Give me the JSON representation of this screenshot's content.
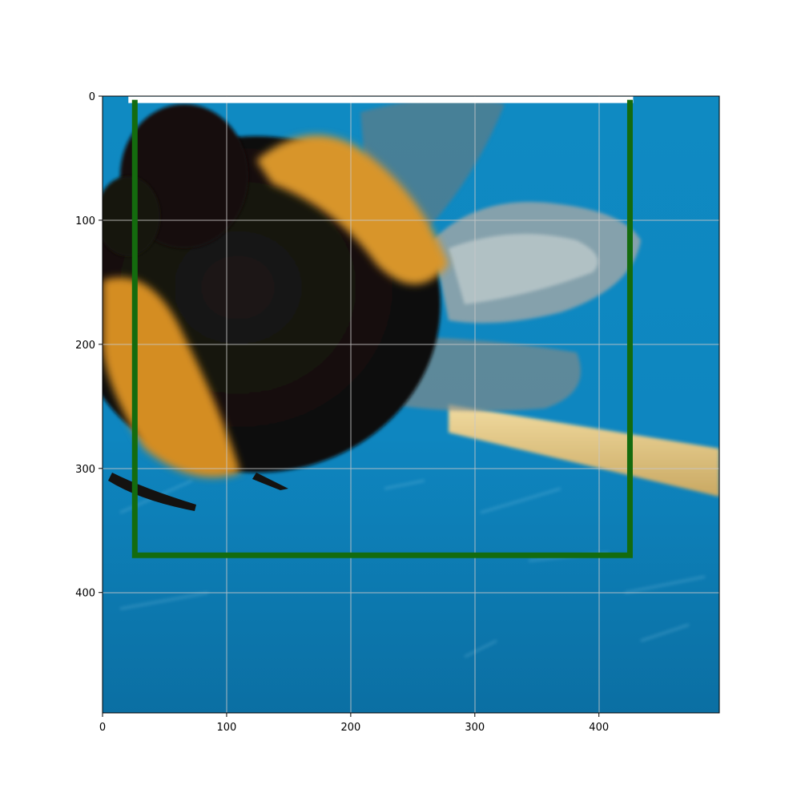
{
  "chart_data": {
    "type": "image",
    "xlim": [
      0,
      497
    ],
    "ylim": [
      497,
      0
    ],
    "grid": true,
    "x_ticks": [
      0,
      100,
      200,
      300,
      400
    ],
    "y_ticks": [
      0,
      100,
      200,
      300,
      400
    ],
    "x_tick_labels": [
      "0",
      "100",
      "200",
      "300",
      "400"
    ],
    "y_tick_labels": [
      "0",
      "100",
      "200",
      "300",
      "400"
    ],
    "bounding_box": {
      "x_min": 26,
      "x_max": 425,
      "y_min": 3,
      "y_max": 370,
      "color": "#146b0e"
    },
    "colors": {
      "water_blue": "#0f8ac2",
      "deep_blue": "#0b6fa3",
      "bee_black": "#16120e",
      "bee_orange": "#d8952a",
      "wing_gray": "#8e9aa0",
      "stick": "#e6c983",
      "grid": "#c8c8c8"
    },
    "subject_icon": "bumblebee-photo"
  }
}
